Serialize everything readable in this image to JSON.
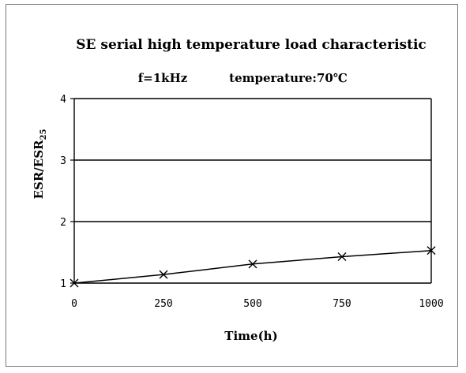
{
  "chart_data": {
    "type": "line",
    "title": "SE serial high temperature load characteristic",
    "subtitle_freq": "f=1kHz",
    "subtitle_temp": "temperature:70℃",
    "xlabel": "Time(h)",
    "ylabel_main": "ESR/ESR",
    "ylabel_sub": "25",
    "x": [
      0,
      250,
      500,
      750,
      1000
    ],
    "series": [
      {
        "values": [
          1.0,
          1.14,
          1.31,
          1.43,
          1.53
        ]
      }
    ],
    "xlim": [
      0,
      1000
    ],
    "ylim": [
      1,
      4
    ],
    "x_ticks": [
      "0",
      "250",
      "500",
      "750",
      "1000"
    ],
    "y_ticks": [
      "1",
      "2",
      "3",
      "4"
    ],
    "grid": "horizontal",
    "marker": "x",
    "colors": {
      "line": "#000000",
      "grid": "#000000",
      "frame": "#7a7a7a"
    }
  }
}
